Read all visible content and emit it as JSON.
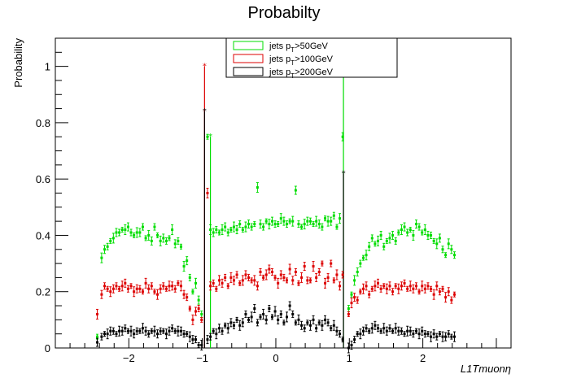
{
  "chart_data": {
    "type": "scatter",
    "title": "Probabilty",
    "xlabel": "L1Tmuonη",
    "ylabel": "Probability",
    "xlim": [
      -3.0,
      3.2
    ],
    "ylim": [
      0,
      1.1
    ],
    "x_ticks": [
      -2,
      -1,
      0,
      1,
      2
    ],
    "x_tick_labels": [
      "−2",
      "−1",
      "0",
      "1",
      "2"
    ],
    "y_ticks": [
      0,
      0.2,
      0.4,
      0.6,
      0.8,
      1
    ],
    "y_tick_labels": [
      "0",
      "0.2",
      "0.4",
      "0.6",
      "0.8",
      "1"
    ],
    "legend": {
      "placement": "top-center"
    },
    "series": [
      {
        "name": "jets pT>50GeV",
        "label_main": "jets p",
        "label_sub": "T",
        "label_tail": ">50GeV",
        "color": "#00dd00",
        "x": [
          -2.43,
          -2.37,
          -2.33,
          -2.29,
          -2.25,
          -2.21,
          -2.17,
          -2.13,
          -2.09,
          -2.05,
          -2.01,
          -1.97,
          -1.93,
          -1.89,
          -1.85,
          -1.81,
          -1.77,
          -1.73,
          -1.69,
          -1.65,
          -1.61,
          -1.57,
          -1.53,
          -1.49,
          -1.45,
          -1.41,
          -1.37,
          -1.33,
          -1.29,
          -1.25,
          -1.21,
          -1.17,
          -1.13,
          -1.09,
          -1.05,
          -1.01,
          -0.93,
          -0.89,
          -0.85,
          -0.81,
          -0.77,
          -0.73,
          -0.69,
          -0.65,
          -0.61,
          -0.57,
          -0.53,
          -0.49,
          -0.45,
          -0.41,
          -0.37,
          -0.33,
          -0.29,
          -0.25,
          -0.21,
          -0.17,
          -0.13,
          -0.09,
          -0.05,
          -0.01,
          0.03,
          0.07,
          0.11,
          0.15,
          0.19,
          0.23,
          0.27,
          0.31,
          0.35,
          0.39,
          0.43,
          0.47,
          0.51,
          0.55,
          0.59,
          0.63,
          0.67,
          0.71,
          0.75,
          0.79,
          0.83,
          0.87,
          0.91,
          0.99,
          1.03,
          1.07,
          1.11,
          1.15,
          1.19,
          1.23,
          1.27,
          1.31,
          1.35,
          1.39,
          1.43,
          1.47,
          1.51,
          1.55,
          1.59,
          1.63,
          1.67,
          1.71,
          1.75,
          1.79,
          1.83,
          1.87,
          1.91,
          1.95,
          1.99,
          2.03,
          2.07,
          2.11,
          2.15,
          2.19,
          2.23,
          2.27,
          2.31,
          2.35,
          2.39,
          2.43
        ],
        "y": [
          0.04,
          0.32,
          0.35,
          0.36,
          0.38,
          0.39,
          0.41,
          0.41,
          0.42,
          0.42,
          0.43,
          0.41,
          0.4,
          0.41,
          0.41,
          0.43,
          0.39,
          0.4,
          0.38,
          0.43,
          0.4,
          0.38,
          0.39,
          0.38,
          0.39,
          0.42,
          0.37,
          0.38,
          0.36,
          0.29,
          0.31,
          0.25,
          0.2,
          0.23,
          0.17,
          0.12,
          0.75,
          0.42,
          0.41,
          0.42,
          0.41,
          0.42,
          0.43,
          0.41,
          0.42,
          0.43,
          0.42,
          0.44,
          0.42,
          0.43,
          0.44,
          0.43,
          0.44,
          0.57,
          0.44,
          0.43,
          0.45,
          0.44,
          0.45,
          0.44,
          0.44,
          0.46,
          0.45,
          0.44,
          0.45,
          0.45,
          0.56,
          0.44,
          0.43,
          0.44,
          0.45,
          0.45,
          0.44,
          0.45,
          0.44,
          0.43,
          0.46,
          0.45,
          0.45,
          0.47,
          0.43,
          0.46,
          0.75,
          0.14,
          0.19,
          0.24,
          0.27,
          0.3,
          0.32,
          0.33,
          0.36,
          0.39,
          0.37,
          0.38,
          0.4,
          0.36,
          0.38,
          0.39,
          0.4,
          0.38,
          0.41,
          0.42,
          0.43,
          0.41,
          0.42,
          0.4,
          0.44,
          0.43,
          0.41,
          0.42,
          0.4,
          0.4,
          0.38,
          0.37,
          0.39,
          0.35,
          0.33,
          0.37,
          0.35,
          0.33
        ]
      },
      {
        "name": "jets pT>100GeV",
        "label_main": "jets p",
        "label_sub": "T",
        "label_tail": ">100GeV",
        "color": "#dd0000",
        "x": [
          -2.43,
          -2.37,
          -2.33,
          -2.29,
          -2.25,
          -2.21,
          -2.17,
          -2.13,
          -2.09,
          -2.05,
          -2.01,
          -1.97,
          -1.93,
          -1.89,
          -1.85,
          -1.81,
          -1.77,
          -1.73,
          -1.69,
          -1.65,
          -1.61,
          -1.57,
          -1.53,
          -1.49,
          -1.45,
          -1.41,
          -1.37,
          -1.33,
          -1.29,
          -1.25,
          -1.21,
          -1.17,
          -1.13,
          -1.09,
          -1.05,
          -1.01,
          -0.93,
          -0.89,
          -0.85,
          -0.81,
          -0.77,
          -0.73,
          -0.69,
          -0.65,
          -0.61,
          -0.57,
          -0.53,
          -0.49,
          -0.45,
          -0.41,
          -0.37,
          -0.33,
          -0.29,
          -0.25,
          -0.21,
          -0.17,
          -0.13,
          -0.09,
          -0.05,
          -0.01,
          0.03,
          0.07,
          0.11,
          0.15,
          0.19,
          0.23,
          0.27,
          0.31,
          0.35,
          0.39,
          0.43,
          0.47,
          0.51,
          0.55,
          0.59,
          0.63,
          0.67,
          0.71,
          0.75,
          0.79,
          0.83,
          0.87,
          0.91,
          0.99,
          1.03,
          1.07,
          1.11,
          1.15,
          1.19,
          1.23,
          1.27,
          1.31,
          1.35,
          1.39,
          1.43,
          1.47,
          1.51,
          1.55,
          1.59,
          1.63,
          1.67,
          1.71,
          1.75,
          1.79,
          1.83,
          1.87,
          1.91,
          1.95,
          1.99,
          2.03,
          2.07,
          2.11,
          2.15,
          2.19,
          2.23,
          2.27,
          2.31,
          2.35,
          2.39,
          2.43
        ],
        "y": [
          0.12,
          0.19,
          0.22,
          0.21,
          0.2,
          0.21,
          0.22,
          0.21,
          0.22,
          0.23,
          0.21,
          0.22,
          0.2,
          0.21,
          0.21,
          0.2,
          0.23,
          0.21,
          0.22,
          0.2,
          0.19,
          0.21,
          0.22,
          0.21,
          0.22,
          0.22,
          0.21,
          0.23,
          0.22,
          0.19,
          0.18,
          0.14,
          0.1,
          0.13,
          0.14,
          0.1,
          0.55,
          0.22,
          0.23,
          0.21,
          0.24,
          0.23,
          0.25,
          0.22,
          0.25,
          0.24,
          0.26,
          0.23,
          0.24,
          0.26,
          0.25,
          0.24,
          0.24,
          0.22,
          0.27,
          0.25,
          0.26,
          0.28,
          0.27,
          0.25,
          0.23,
          0.26,
          0.25,
          0.24,
          0.28,
          0.24,
          0.27,
          0.23,
          0.25,
          0.29,
          0.24,
          0.24,
          0.29,
          0.25,
          0.27,
          0.3,
          0.23,
          0.25,
          0.3,
          0.24,
          0.26,
          0.22,
          0.26,
          0.12,
          0.16,
          0.18,
          0.17,
          0.2,
          0.21,
          0.22,
          0.19,
          0.21,
          0.22,
          0.23,
          0.21,
          0.22,
          0.21,
          0.22,
          0.2,
          0.22,
          0.21,
          0.22,
          0.23,
          0.21,
          0.22,
          0.21,
          0.22,
          0.2,
          0.22,
          0.21,
          0.22,
          0.21,
          0.19,
          0.22,
          0.2,
          0.21,
          0.18,
          0.2,
          0.17,
          0.19
        ]
      },
      {
        "name": "jets pT>200GeV",
        "label_main": "jets p",
        "label_sub": "T",
        "label_tail": ">200GeV",
        "color": "#000000",
        "x": [
          -2.43,
          -2.37,
          -2.33,
          -2.29,
          -2.25,
          -2.21,
          -2.17,
          -2.13,
          -2.09,
          -2.05,
          -2.01,
          -1.97,
          -1.93,
          -1.89,
          -1.85,
          -1.81,
          -1.77,
          -1.73,
          -1.69,
          -1.65,
          -1.61,
          -1.57,
          -1.53,
          -1.49,
          -1.45,
          -1.41,
          -1.37,
          -1.33,
          -1.29,
          -1.25,
          -1.21,
          -1.17,
          -1.13,
          -1.09,
          -1.05,
          -1.01,
          -0.93,
          -0.89,
          -0.85,
          -0.81,
          -0.77,
          -0.73,
          -0.69,
          -0.65,
          -0.61,
          -0.57,
          -0.53,
          -0.49,
          -0.45,
          -0.41,
          -0.37,
          -0.33,
          -0.29,
          -0.25,
          -0.21,
          -0.17,
          -0.13,
          -0.09,
          -0.05,
          -0.01,
          0.03,
          0.07,
          0.11,
          0.15,
          0.19,
          0.23,
          0.27,
          0.31,
          0.35,
          0.39,
          0.43,
          0.47,
          0.51,
          0.55,
          0.59,
          0.63,
          0.67,
          0.71,
          0.75,
          0.79,
          0.83,
          0.87,
          0.91,
          0.99,
          1.03,
          1.07,
          1.11,
          1.15,
          1.19,
          1.23,
          1.27,
          1.31,
          1.35,
          1.39,
          1.43,
          1.47,
          1.51,
          1.55,
          1.59,
          1.63,
          1.67,
          1.71,
          1.75,
          1.79,
          1.83,
          1.87,
          1.91,
          1.95,
          1.99,
          2.03,
          2.07,
          2.11,
          2.15,
          2.19,
          2.23,
          2.27,
          2.31,
          2.35,
          2.39,
          2.43
        ],
        "y": [
          0.02,
          0.04,
          0.05,
          0.05,
          0.06,
          0.06,
          0.05,
          0.06,
          0.06,
          0.07,
          0.06,
          0.06,
          0.05,
          0.06,
          0.06,
          0.07,
          0.06,
          0.05,
          0.06,
          0.06,
          0.05,
          0.06,
          0.06,
          0.05,
          0.06,
          0.07,
          0.06,
          0.06,
          0.06,
          0.05,
          0.05,
          0.04,
          0.03,
          0.03,
          0.01,
          0.01,
          0.03,
          0.04,
          0.06,
          0.05,
          0.07,
          0.06,
          0.08,
          0.07,
          0.09,
          0.08,
          0.1,
          0.08,
          0.09,
          0.12,
          0.1,
          0.11,
          0.14,
          0.09,
          0.11,
          0.12,
          0.1,
          0.14,
          0.11,
          0.13,
          0.1,
          0.12,
          0.09,
          0.11,
          0.15,
          0.12,
          0.09,
          0.1,
          0.08,
          0.07,
          0.09,
          0.08,
          0.1,
          0.07,
          0.09,
          0.08,
          0.1,
          0.09,
          0.07,
          0.08,
          0.06,
          0.05,
          0.03,
          0.0,
          0.01,
          0.03,
          0.05,
          0.05,
          0.06,
          0.07,
          0.06,
          0.07,
          0.08,
          0.07,
          0.06,
          0.07,
          0.06,
          0.07,
          0.06,
          0.07,
          0.06,
          0.06,
          0.05,
          0.06,
          0.06,
          0.05,
          0.06,
          0.05,
          0.06,
          0.05,
          0.05,
          0.04,
          0.05,
          0.04,
          0.05,
          0.04,
          0.04,
          0.05,
          0.04,
          0.04
        ]
      }
    ],
    "spikes": [
      {
        "x": -0.97,
        "y": 1.0,
        "color": "#dd0000",
        "series": "jets pT>100GeV"
      },
      {
        "x": -0.97,
        "y": 0.84,
        "color": "#000000",
        "series": "jets pT>200GeV"
      },
      {
        "x": -0.89,
        "y": 0.75,
        "color": "#00dd00",
        "series": "jets pT>50GeV"
      },
      {
        "x": 0.92,
        "y": 0.97,
        "color": "#00dd00",
        "series": "jets pT>50GeV"
      },
      {
        "x": 0.92,
        "y": 0.62,
        "color": "#000000",
        "series": "jets pT>200GeV"
      }
    ]
  }
}
